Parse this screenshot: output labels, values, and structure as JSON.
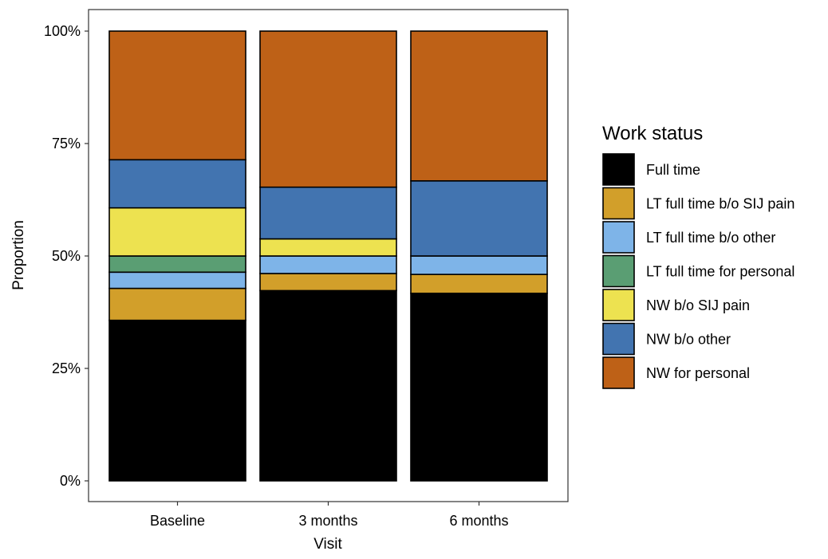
{
  "chart_data": {
    "type": "bar",
    "stacked": true,
    "normalized": true,
    "categories": [
      "Baseline",
      "3 months",
      "6 months"
    ],
    "xlabel": "Visit",
    "ylabel": "Proportion",
    "ylim": [
      0,
      1
    ],
    "y_ticks": [
      {
        "value": 0,
        "label": "0%"
      },
      {
        "value": 0.25,
        "label": "25%"
      },
      {
        "value": 0.5,
        "label": "50%"
      },
      {
        "value": 0.75,
        "label": "75%"
      },
      {
        "value": 1,
        "label": "100%"
      }
    ],
    "grid": false,
    "legend": {
      "title": "Work status",
      "position": "right"
    },
    "series": [
      {
        "name": "Full time",
        "color": "#000000",
        "values": [
          0.357,
          0.423,
          0.417
        ]
      },
      {
        "name": "LT full time b/o SIJ pain",
        "color": "#D29F2A",
        "values": [
          0.071,
          0.038,
          0.042
        ]
      },
      {
        "name": "LT full time b/o other",
        "color": "#7EB4E8",
        "values": [
          0.036,
          0.039,
          0.041
        ]
      },
      {
        "name": "LT full time for personal",
        "color": "#5A9E73",
        "values": [
          0.036,
          0.0,
          0.0
        ]
      },
      {
        "name": "NW b/o SIJ pain",
        "color": "#EDE250",
        "values": [
          0.107,
          0.038,
          0.0
        ]
      },
      {
        "name": "NW b/o other",
        "color": "#4274B0",
        "values": [
          0.107,
          0.115,
          0.167
        ]
      },
      {
        "name": "NW for personal",
        "color": "#BE6117",
        "values": [
          0.286,
          0.347,
          0.333
        ]
      }
    ]
  }
}
